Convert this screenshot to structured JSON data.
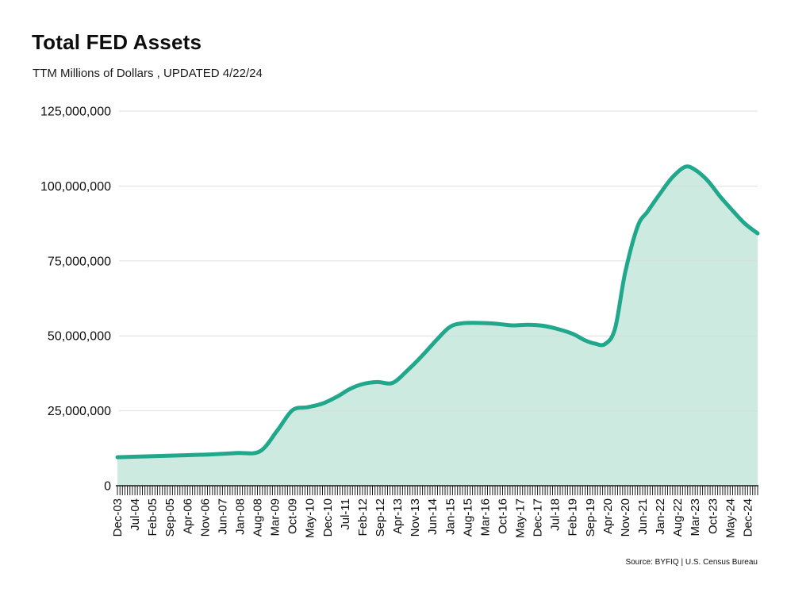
{
  "header": {
    "title": "Total FED Assets",
    "subtitle": "TTM Millions of Dollars , UPDATED 4/22/24"
  },
  "footer": {
    "source": "Source: BYFIQ | U.S. Census Bureau"
  },
  "chart_data": {
    "type": "area",
    "title": "Total FED Assets",
    "subtitle": "TTM Millions of Dollars , UPDATED 4/22/24",
    "xlabel": "",
    "ylabel": "",
    "ylim": [
      0,
      125000000
    ],
    "y_tick_values": [
      0,
      25000000,
      50000000,
      75000000,
      100000000,
      125000000
    ],
    "y_tick_labels": [
      "0",
      "25,000,000",
      "50,000,000",
      "75,000,000",
      "100,000,000",
      "125,000,000"
    ],
    "x_tick_labels": [
      "Dec-03",
      "Jul-04",
      "Feb-05",
      "Sep-05",
      "Apr-06",
      "Nov-06",
      "Jun-07",
      "Jan-08",
      "Aug-08",
      "Mar-09",
      "Oct-09",
      "May-10",
      "Dec-10",
      "Jul-11",
      "Feb-12",
      "Sep-12",
      "Apr-13",
      "Nov-13",
      "Jun-14",
      "Jan-15",
      "Aug-15",
      "Mar-16",
      "Oct-16",
      "May-17",
      "Dec-17",
      "Jul-18",
      "Feb-19",
      "Sep-19",
      "Apr-20",
      "Nov-20",
      "Jun-21",
      "Jan-22",
      "Aug-22",
      "Mar-23",
      "Oct-23",
      "May-24",
      "Dec-24"
    ],
    "x_tick_label_interval_months": 7,
    "x_minor_tick_every_months": 1,
    "x_total_months": 256,
    "grid": "horizontal",
    "legend": "none",
    "series": [
      {
        "name": "Total FED Assets",
        "points_month_value": [
          [
            0,
            9500000
          ],
          [
            12,
            9800000
          ],
          [
            24,
            10100000
          ],
          [
            36,
            10400000
          ],
          [
            48,
            10900000
          ],
          [
            57,
            11500000
          ],
          [
            64,
            18500000
          ],
          [
            70,
            25200000
          ],
          [
            76,
            26200000
          ],
          [
            82,
            27400000
          ],
          [
            88,
            29800000
          ],
          [
            93,
            32300000
          ],
          [
            98,
            33900000
          ],
          [
            104,
            34600000
          ],
          [
            110,
            34300000
          ],
          [
            116,
            38500000
          ],
          [
            122,
            43500000
          ],
          [
            128,
            49000000
          ],
          [
            133,
            53000000
          ],
          [
            138,
            54200000
          ],
          [
            146,
            54300000
          ],
          [
            152,
            54000000
          ],
          [
            158,
            53500000
          ],
          [
            164,
            53700000
          ],
          [
            170,
            53400000
          ],
          [
            176,
            52300000
          ],
          [
            182,
            50700000
          ],
          [
            187,
            48500000
          ],
          [
            191,
            47400000
          ],
          [
            195,
            47300000
          ],
          [
            199,
            52500000
          ],
          [
            203,
            71000000
          ],
          [
            208,
            86500000
          ],
          [
            212,
            91500000
          ],
          [
            217,
            97500000
          ],
          [
            222,
            103000000
          ],
          [
            227,
            106400000
          ],
          [
            231,
            105400000
          ],
          [
            236,
            101800000
          ],
          [
            241,
            96500000
          ],
          [
            246,
            91800000
          ],
          [
            251,
            87400000
          ],
          [
            256,
            84200000
          ]
        ]
      }
    ],
    "colors": {
      "line": "#21A88C",
      "fill": "#CDEAE1",
      "grid": "#D9D9D9",
      "axis": "#1A1A1A",
      "text": "#0D0D0D"
    }
  }
}
